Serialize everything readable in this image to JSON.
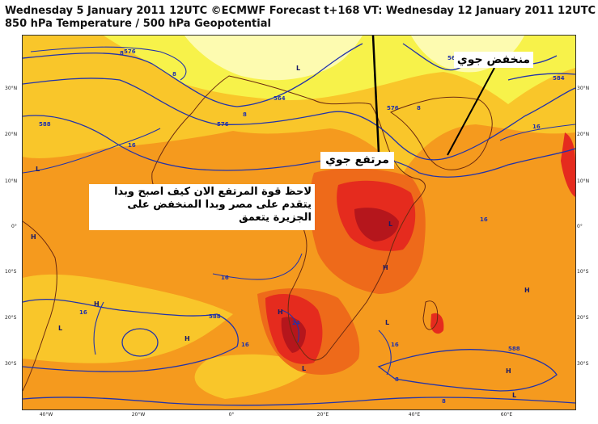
{
  "header": {
    "line1": "Wednesday 5 January 2011 12UTC ©ECMWF Forecast t+168 VT: Wednesday 12 January 2011 12UTC",
    "line2": "850 hPa Temperature / 500 hPa Geopotential"
  },
  "axes": {
    "lat_labels": [
      "30°N",
      "20°N",
      "10°N",
      "0°",
      "10°S",
      "20°S",
      "30°S"
    ],
    "lon_labels": [
      "40°W",
      "20°W",
      "0°",
      "20°E",
      "40°E",
      "60°E"
    ]
  },
  "contour_labels": {
    "geopotential": [
      "564",
      "576",
      "576",
      "588",
      "588",
      "564",
      "588",
      "576",
      "584"
    ],
    "temperature": [
      "8",
      "8",
      "8",
      "16",
      "16",
      "16",
      "16",
      "16",
      "16",
      "24",
      "8",
      "8",
      "8",
      "16"
    ]
  },
  "pressure_centres": {
    "L": [
      "L",
      "L",
      "L",
      "L",
      "L",
      "L",
      "L"
    ],
    "H": [
      "H",
      "H",
      "H",
      "H",
      "H",
      "H",
      "H"
    ]
  },
  "annotations": {
    "low_label": "منخفض جوي",
    "high_label": "مرتفع جوي",
    "main_note": "لاحظ قوة المرتفع الان كيف اصبح وبدا يتقدم على مصر وبدا المنخفض على الجزيرة يتعمق"
  },
  "colors": {
    "pale_yellow": "#fdfbb0",
    "yellow": "#f7f24a",
    "gold": "#f9c62a",
    "orange": "#f59a1e",
    "dark_orange": "#ee6a1a",
    "red": "#e52b1e",
    "dark_red": "#b5161c",
    "contour_blue": "#2233aa"
  }
}
